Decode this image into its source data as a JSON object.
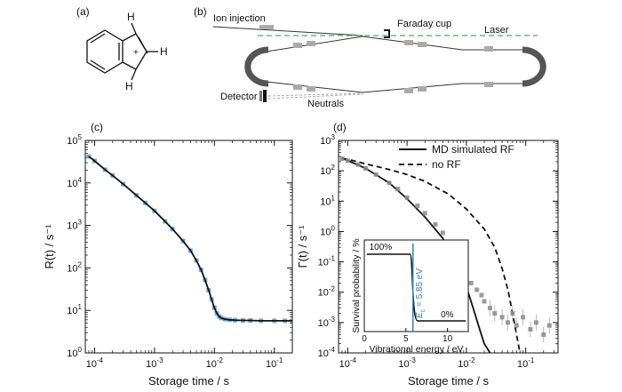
{
  "panels": {
    "a": "(a)",
    "b": "(b)",
    "c": "(c)",
    "d": "(d)"
  },
  "molecule": {
    "h_top": "H",
    "h_right": "H",
    "h_bottom": "H",
    "charge": "+"
  },
  "ring_diagram": {
    "ion_injection": "Ion injection",
    "faraday_cup": "Faraday cup",
    "laser": "Laser",
    "detector": "Detector",
    "neutrals": "Neutrals"
  },
  "colors": {
    "data_blue": "#5b9bd5",
    "fit_black": "#111111",
    "laser_green": "#4caf50",
    "grey_points": "#8a8a8a",
    "annotation_blue": "#3a7fc1"
  },
  "inset": {
    "ylabel": "Survival probability / %",
    "xlabel": "Vibrational energy / eV",
    "label_100": "100%",
    "label_0": "0%",
    "ec_label": "E",
    "ec_sub": "c",
    "ec_value": " = 5.85 eV",
    "xticks": [
      "0",
      "5",
      "10"
    ],
    "xlim": [
      0,
      12.5
    ],
    "ylim": [
      0,
      100
    ],
    "step_energy": 5.85
  },
  "chart_data": [
    {
      "type": "scatter",
      "panel": "(c)",
      "xlabel": "Storage time / s",
      "ylabel": "R(t) / s⁻¹",
      "xscale": "log",
      "yscale": "log",
      "xlim": [
        7e-05,
        0.2
      ],
      "ylim": [
        1,
        100000
      ],
      "xticks": [
        {
          "value": 0.0001,
          "base": "10",
          "exp": "-4"
        },
        {
          "value": 0.001,
          "base": "10",
          "exp": "-3"
        },
        {
          "value": 0.01,
          "base": "10",
          "exp": "-2"
        },
        {
          "value": 0.1,
          "base": "10",
          "exp": "-1"
        }
      ],
      "yticks": [
        {
          "value": 1,
          "base": "10",
          "exp": "0"
        },
        {
          "value": 10,
          "base": "10",
          "exp": "1"
        },
        {
          "value": 100,
          "base": "10",
          "exp": "2"
        },
        {
          "value": 1000,
          "base": "10",
          "exp": "3"
        },
        {
          "value": 10000,
          "base": "10",
          "exp": "4"
        },
        {
          "value": 100000,
          "base": "10",
          "exp": "5"
        }
      ],
      "series": [
        {
          "style": "points",
          "color": "#5b9bd5",
          "x": [
            8e-05,
            0.0001,
            0.00015,
            0.0002,
            0.0003,
            0.0005,
            0.0007,
            0.001,
            0.0015,
            0.002,
            0.003,
            0.004,
            0.005,
            0.006,
            0.007,
            0.008,
            0.009,
            0.01,
            0.011,
            0.012,
            0.013,
            0.015,
            0.018,
            0.022,
            0.03,
            0.04,
            0.06,
            0.1,
            0.15,
            0.2
          ],
          "y": [
            42000,
            33000,
            20500,
            15000,
            9400,
            5100,
            3400,
            2200,
            1250,
            820,
            430,
            255,
            150,
            90,
            52,
            30,
            18,
            11.5,
            8.5,
            7.2,
            6.6,
            6.2,
            6.0,
            5.9,
            5.8,
            5.8,
            5.7,
            5.7,
            5.7,
            5.7
          ]
        },
        {
          "style": "line",
          "color": "#111111",
          "x": [
            8e-05,
            0.0001,
            0.00015,
            0.0002,
            0.0003,
            0.0005,
            0.0007,
            0.001,
            0.0015,
            0.002,
            0.003,
            0.004,
            0.005,
            0.006,
            0.007,
            0.008,
            0.009,
            0.01,
            0.011,
            0.012,
            0.013,
            0.015,
            0.018,
            0.022,
            0.03,
            0.04,
            0.06,
            0.1,
            0.15,
            0.2
          ],
          "y": [
            42000,
            33000,
            20500,
            15000,
            9400,
            5100,
            3400,
            2200,
            1250,
            820,
            430,
            255,
            150,
            90,
            52,
            30,
            18,
            11.5,
            8.5,
            7.2,
            6.6,
            6.2,
            6.0,
            5.9,
            5.8,
            5.8,
            5.7,
            5.7,
            5.7,
            5.7
          ]
        }
      ]
    },
    {
      "type": "scatter",
      "panel": "(d)",
      "xlabel": "Storage time / s",
      "ylabel": "Γ(t) / s⁻¹",
      "xscale": "log",
      "yscale": "log",
      "xlim": [
        7e-05,
        0.35
      ],
      "ylim": [
        0.0001,
        1000
      ],
      "legend_position": "top-right",
      "xticks": [
        {
          "value": 0.0001,
          "base": "10",
          "exp": "-4"
        },
        {
          "value": 0.001,
          "base": "10",
          "exp": "-3"
        },
        {
          "value": 0.01,
          "base": "10",
          "exp": "-2"
        },
        {
          "value": 0.1,
          "base": "10",
          "exp": "-1"
        }
      ],
      "yticks": [
        {
          "value": 0.0001,
          "base": "10",
          "exp": "-4"
        },
        {
          "value": 0.001,
          "base": "10",
          "exp": "-3"
        },
        {
          "value": 0.01,
          "base": "10",
          "exp": "-2"
        },
        {
          "value": 0.1,
          "base": "10",
          "exp": "-1"
        },
        {
          "value": 1,
          "base": "10",
          "exp": "0"
        },
        {
          "value": 10,
          "base": "10",
          "exp": "1"
        },
        {
          "value": 100,
          "base": "10",
          "exp": "2"
        },
        {
          "value": 1000,
          "base": "10",
          "exp": "3"
        }
      ],
      "series": [
        {
          "name": "MD simulated RF",
          "style": "solid",
          "color": "#111111",
          "x": [
            8e-05,
            0.0001,
            0.0002,
            0.0005,
            0.001,
            0.002,
            0.004,
            0.007,
            0.01,
            0.013,
            0.016,
            0.02,
            0.025
          ],
          "y": [
            260,
            220,
            120,
            40,
            12,
            3,
            0.6,
            0.08,
            0.015,
            0.003,
            0.0008,
            0.0002,
            0.0001
          ]
        },
        {
          "name": "no RF",
          "style": "dashed",
          "color": "#111111",
          "x": [
            8e-05,
            0.0001,
            0.0002,
            0.0005,
            0.001,
            0.002,
            0.005,
            0.01,
            0.02,
            0.03,
            0.04,
            0.05,
            0.06,
            0.07,
            0.08
          ],
          "y": [
            260,
            240,
            170,
            110,
            75,
            45,
            17,
            5.5,
            1.2,
            0.3,
            0.06,
            0.012,
            0.002,
            0.0004,
            0.0001
          ]
        },
        {
          "style": "points",
          "color": "#8a8a8a",
          "x": [
            8e-05,
            0.0001,
            0.00015,
            0.0002,
            0.0003,
            0.0005,
            0.0007,
            0.001,
            0.0015,
            0.002,
            0.003,
            0.004,
            0.005,
            0.006,
            0.008,
            0.01,
            0.012,
            0.015,
            0.018,
            0.02,
            0.025,
            0.03,
            0.04,
            0.05,
            0.06,
            0.07,
            0.09,
            0.12,
            0.15,
            0.2,
            0.25
          ],
          "y": [
            250,
            215,
            160,
            120,
            75,
            40,
            25,
            13,
            7,
            4,
            1.7,
            0.9,
            0.45,
            0.25,
            0.1,
            0.045,
            0.02,
            0.012,
            0.008,
            0.005,
            0.003,
            0.002,
            0.0015,
            0.001,
            0.002,
            0.0008,
            0.0015,
            0.0006,
            0.001,
            0.0004,
            0.0008
          ]
        }
      ]
    }
  ]
}
